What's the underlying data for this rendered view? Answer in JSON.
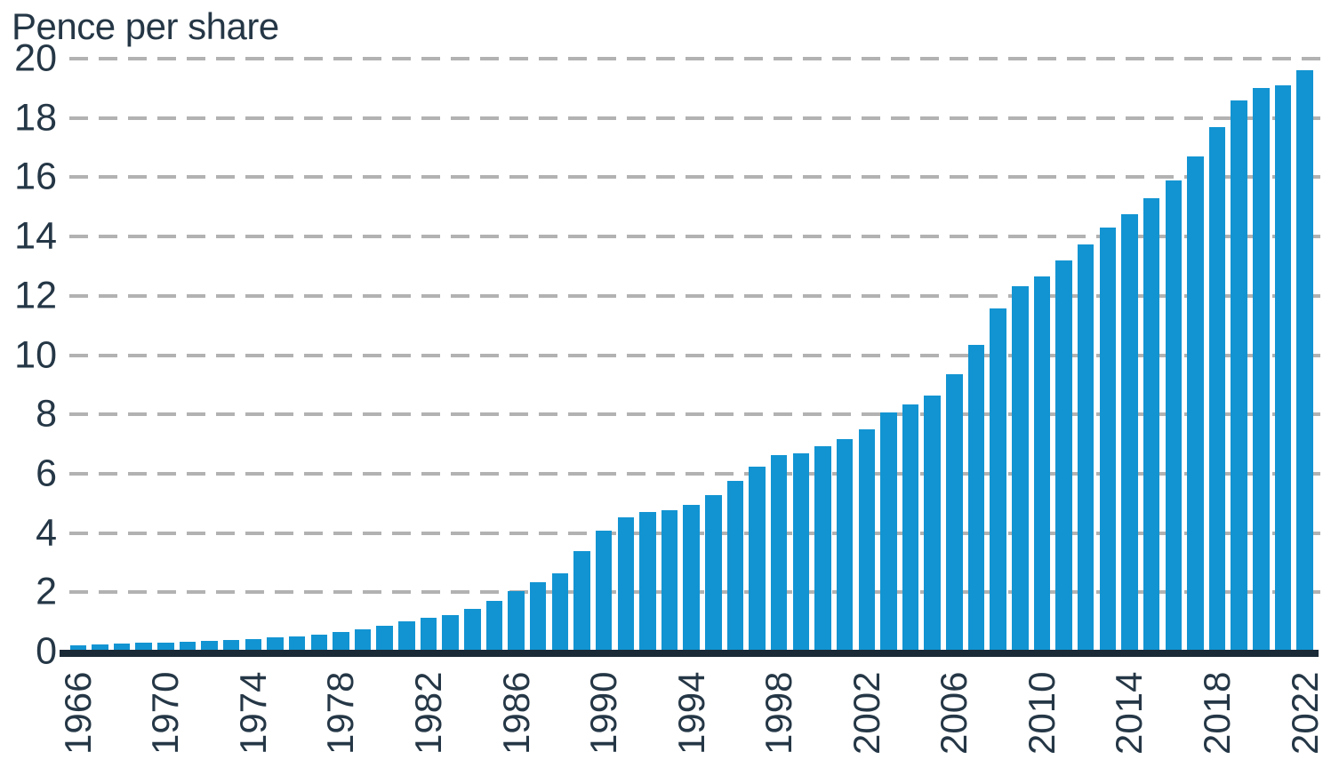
{
  "chart_data": {
    "type": "bar",
    "title": "Pence per share",
    "xlabel": "",
    "ylabel": "Pence per share",
    "ylim": [
      0,
      20
    ],
    "yticks": [
      0,
      2,
      4,
      6,
      8,
      10,
      12,
      14,
      16,
      18,
      20
    ],
    "grid": "horizontal-dashed",
    "legend": "none",
    "xtick_every": 4,
    "bar_color": "#1294d2",
    "axis_line_color": "#1b2a37",
    "gridline_color": "#b2b2b2",
    "text_color": "#253746",
    "categories": [
      1966,
      1967,
      1968,
      1969,
      1970,
      1971,
      1972,
      1973,
      1974,
      1975,
      1976,
      1977,
      1978,
      1979,
      1980,
      1981,
      1982,
      1983,
      1984,
      1985,
      1986,
      1987,
      1988,
      1989,
      1990,
      1991,
      1992,
      1993,
      1994,
      1995,
      1996,
      1997,
      1998,
      1999,
      2000,
      2001,
      2002,
      2003,
      2004,
      2005,
      2006,
      2007,
      2008,
      2009,
      2010,
      2011,
      2012,
      2013,
      2014,
      2015,
      2016,
      2017,
      2018,
      2019,
      2020,
      2021,
      2022
    ],
    "values": [
      0.2,
      0.23,
      0.26,
      0.29,
      0.3,
      0.33,
      0.36,
      0.39,
      0.43,
      0.48,
      0.52,
      0.58,
      0.65,
      0.74,
      0.88,
      1.02,
      1.13,
      1.24,
      1.45,
      1.71,
      2.03,
      2.33,
      2.64,
      3.4,
      4.08,
      4.52,
      4.72,
      4.78,
      4.94,
      5.28,
      5.76,
      6.25,
      6.64,
      6.7,
      6.92,
      7.17,
      7.51,
      8.08,
      8.33,
      8.63,
      9.35,
      10.33,
      11.58,
      12.32,
      12.66,
      13.2,
      13.74,
      14.3,
      14.76,
      15.3,
      15.9,
      16.7,
      17.7,
      18.6,
      19.0,
      19.1,
      19.6
    ],
    "xtick_labels": [
      1966,
      1970,
      1974,
      1978,
      1982,
      1986,
      1990,
      1994,
      1998,
      2002,
      2006,
      2010,
      2014,
      2018,
      2022
    ]
  }
}
